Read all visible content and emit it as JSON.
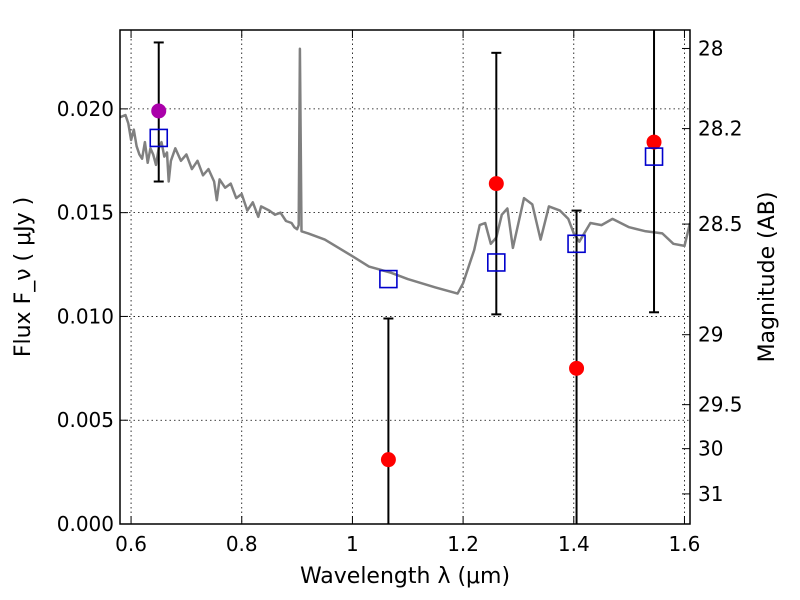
{
  "chart_data": {
    "type": "scatter",
    "xlabel": "Wavelength  λ (μm)",
    "ylabel": "Flux  F_ν  ( μJy )",
    "ylabel_right": "Magnitude (AB)",
    "xlim": [
      0.58,
      1.61
    ],
    "ylim": [
      0,
      0.0238
    ],
    "grid": true,
    "x_ticks": [
      {
        "value": 0.6,
        "label": "0.6"
      },
      {
        "value": 0.8,
        "label": "0.8"
      },
      {
        "value": 1.0,
        "label": "1"
      },
      {
        "value": 1.2,
        "label": "1.2"
      },
      {
        "value": 1.4,
        "label": "1.4"
      },
      {
        "value": 1.6,
        "label": "1.6"
      }
    ],
    "y_ticks": [
      {
        "value": 0.0,
        "label": "0.000"
      },
      {
        "value": 0.005,
        "label": "0.005"
      },
      {
        "value": 0.01,
        "label": "0.010"
      },
      {
        "value": 0.015,
        "label": "0.015"
      },
      {
        "value": 0.02,
        "label": "0.020"
      }
    ],
    "right_ticks": [
      {
        "flux": 0.02291,
        "label": "28"
      },
      {
        "flux": 0.01905,
        "label": "28.2"
      },
      {
        "flux": 0.01445,
        "label": "28.5"
      },
      {
        "flux": 0.00912,
        "label": "29"
      },
      {
        "flux": 0.00575,
        "label": "29.5"
      },
      {
        "flux": 0.00363,
        "label": "30"
      },
      {
        "flux": 0.00145,
        "label": "31"
      }
    ],
    "template_spectrum": {
      "color": "#808080",
      "points": [
        [
          0.58,
          0.0196
        ],
        [
          0.59,
          0.0197
        ],
        [
          0.595,
          0.0193
        ],
        [
          0.6,
          0.0185
        ],
        [
          0.605,
          0.019
        ],
        [
          0.61,
          0.0182
        ],
        [
          0.615,
          0.0178
        ],
        [
          0.62,
          0.0176
        ],
        [
          0.625,
          0.0184
        ],
        [
          0.63,
          0.0174
        ],
        [
          0.635,
          0.0181
        ],
        [
          0.64,
          0.0178
        ],
        [
          0.645,
          0.0173
        ],
        [
          0.65,
          0.0181
        ],
        [
          0.655,
          0.0184
        ],
        [
          0.66,
          0.0177
        ],
        [
          0.665,
          0.0179
        ],
        [
          0.668,
          0.0165
        ],
        [
          0.672,
          0.0175
        ],
        [
          0.68,
          0.0181
        ],
        [
          0.69,
          0.0175
        ],
        [
          0.7,
          0.0178
        ],
        [
          0.71,
          0.0171
        ],
        [
          0.72,
          0.0175
        ],
        [
          0.73,
          0.0168
        ],
        [
          0.74,
          0.0171
        ],
        [
          0.75,
          0.0165
        ],
        [
          0.755,
          0.0156
        ],
        [
          0.76,
          0.0166
        ],
        [
          0.77,
          0.0162
        ],
        [
          0.78,
          0.0164
        ],
        [
          0.79,
          0.0157
        ],
        [
          0.8,
          0.0159
        ],
        [
          0.81,
          0.0151
        ],
        [
          0.82,
          0.0155
        ],
        [
          0.83,
          0.0148
        ],
        [
          0.835,
          0.0153
        ],
        [
          0.85,
          0.0151
        ],
        [
          0.86,
          0.0149
        ],
        [
          0.87,
          0.015
        ],
        [
          0.88,
          0.0146
        ],
        [
          0.89,
          0.0145
        ],
        [
          0.895,
          0.0143
        ],
        [
          0.9,
          0.0142
        ],
        [
          0.903,
          0.0144
        ],
        [
          0.905,
          0.0229
        ],
        [
          0.908,
          0.0141
        ],
        [
          0.92,
          0.014
        ],
        [
          0.95,
          0.0137
        ],
        [
          1.0,
          0.0129
        ],
        [
          1.03,
          0.0124
        ],
        [
          1.07,
          0.0121
        ],
        [
          1.1,
          0.0118
        ],
        [
          1.15,
          0.0114
        ],
        [
          1.19,
          0.0111
        ],
        [
          1.2,
          0.0116
        ],
        [
          1.22,
          0.0132
        ],
        [
          1.23,
          0.0144
        ],
        [
          1.24,
          0.0145
        ],
        [
          1.25,
          0.0135
        ],
        [
          1.26,
          0.0138
        ],
        [
          1.27,
          0.0149
        ],
        [
          1.28,
          0.0152
        ],
        [
          1.29,
          0.0133
        ],
        [
          1.31,
          0.0157
        ],
        [
          1.325,
          0.0154
        ],
        [
          1.34,
          0.0137
        ],
        [
          1.355,
          0.0153
        ],
        [
          1.375,
          0.0151
        ],
        [
          1.39,
          0.0147
        ],
        [
          1.4,
          0.014
        ],
        [
          1.41,
          0.0136
        ],
        [
          1.43,
          0.0145
        ],
        [
          1.45,
          0.0144
        ],
        [
          1.47,
          0.0147
        ],
        [
          1.5,
          0.0143
        ],
        [
          1.53,
          0.0141
        ],
        [
          1.56,
          0.014
        ],
        [
          1.58,
          0.0135
        ],
        [
          1.6,
          0.0134
        ],
        [
          1.61,
          0.0145
        ]
      ]
    },
    "series": [
      {
        "marker": "filled-circle",
        "color": "#ff0000",
        "points": [
          {
            "x": 1.065,
            "y": 0.0031,
            "ylo": 0.0,
            "yhi": 0.0099
          },
          {
            "x": 1.26,
            "y": 0.0164,
            "ylo": 0.0101,
            "yhi": 0.0227
          },
          {
            "x": 1.405,
            "y": 0.0075,
            "ylo": 0.0,
            "yhi": 0.0151
          },
          {
            "x": 1.545,
            "y": 0.0184,
            "ylo": 0.0102,
            "yhi": 0.0238
          }
        ]
      },
      {
        "marker": "filled-circle",
        "color": "#aa00aa",
        "points": [
          {
            "x": 0.65,
            "y": 0.0199,
            "ylo": 0.0165,
            "yhi": 0.0232
          }
        ]
      },
      {
        "marker": "open-square",
        "color": "#0000cc",
        "points": [
          {
            "x": 0.65,
            "y": 0.0186
          },
          {
            "x": 1.065,
            "y": 0.0118
          },
          {
            "x": 1.26,
            "y": 0.0126
          },
          {
            "x": 1.405,
            "y": 0.0135
          },
          {
            "x": 1.545,
            "y": 0.0177
          }
        ]
      }
    ]
  }
}
